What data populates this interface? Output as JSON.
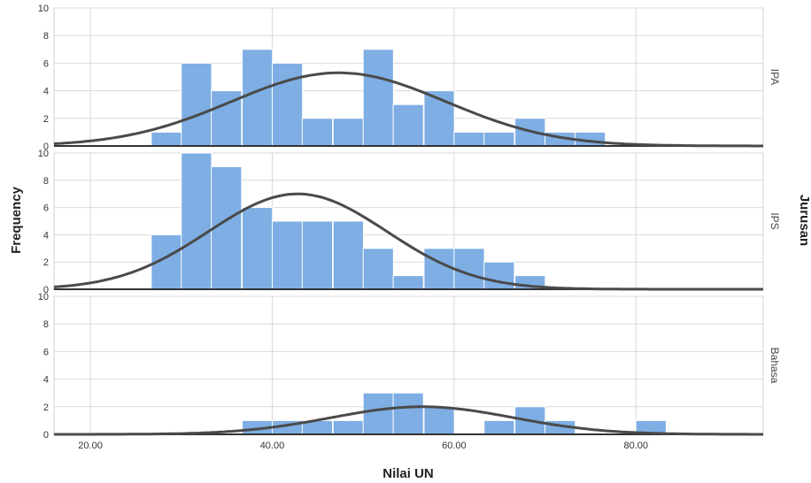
{
  "chart_data": {
    "type": "histogram",
    "title": "",
    "xlabel": "Nilai UN",
    "ylabel": "Frequency",
    "facet_title": "Jurusan",
    "xlim": [
      16,
      94
    ],
    "ylim": [
      0,
      10
    ],
    "x_ticks": [
      "20.00",
      "40.00",
      "60.00",
      "80.00"
    ],
    "x_tick_values": [
      20,
      40,
      60,
      80
    ],
    "y_ticks": [
      "0",
      "2",
      "4",
      "6",
      "8",
      "10"
    ],
    "y_tick_values": [
      0,
      2,
      4,
      6,
      8,
      10
    ],
    "bin_width": 3.33,
    "bar_color": "#7eaee3",
    "curve_color": "#4a4a4a",
    "normal_curve": true,
    "grid": true,
    "panels": [
      {
        "name": "IPA",
        "bins": [
          {
            "x": 26.7,
            "count": 1
          },
          {
            "x": 30.0,
            "count": 6
          },
          {
            "x": 33.3,
            "count": 4
          },
          {
            "x": 36.7,
            "count": 7
          },
          {
            "x": 40.0,
            "count": 6
          },
          {
            "x": 43.3,
            "count": 2
          },
          {
            "x": 46.7,
            "count": 2
          },
          {
            "x": 50.0,
            "count": 7
          },
          {
            "x": 53.3,
            "count": 3
          },
          {
            "x": 56.7,
            "count": 4
          },
          {
            "x": 60.0,
            "count": 1
          },
          {
            "x": 63.3,
            "count": 1
          },
          {
            "x": 66.7,
            "count": 2
          },
          {
            "x": 70.0,
            "count": 1
          },
          {
            "x": 73.3,
            "count": 1
          }
        ],
        "curve": {
          "mean": 47.3,
          "sd": 11.8,
          "peak": 5.3
        }
      },
      {
        "name": "IPS",
        "bins": [
          {
            "x": 26.7,
            "count": 4
          },
          {
            "x": 30.0,
            "count": 10
          },
          {
            "x": 33.3,
            "count": 9
          },
          {
            "x": 36.7,
            "count": 6
          },
          {
            "x": 40.0,
            "count": 5
          },
          {
            "x": 43.3,
            "count": 5
          },
          {
            "x": 46.7,
            "count": 5
          },
          {
            "x": 50.0,
            "count": 3
          },
          {
            "x": 53.3,
            "count": 1
          },
          {
            "x": 56.7,
            "count": 3
          },
          {
            "x": 60.0,
            "count": 3
          },
          {
            "x": 63.3,
            "count": 2
          },
          {
            "x": 66.7,
            "count": 1
          }
        ],
        "curve": {
          "mean": 42.8,
          "sd": 9.8,
          "peak": 7.0
        }
      },
      {
        "name": "Bahasa",
        "bins": [
          {
            "x": 36.7,
            "count": 1
          },
          {
            "x": 40.0,
            "count": 1
          },
          {
            "x": 43.3,
            "count": 1
          },
          {
            "x": 46.7,
            "count": 1
          },
          {
            "x": 50.0,
            "count": 3
          },
          {
            "x": 53.3,
            "count": 3
          },
          {
            "x": 56.7,
            "count": 2
          },
          {
            "x": 60.0,
            "count": 0
          },
          {
            "x": 63.3,
            "count": 1
          },
          {
            "x": 66.7,
            "count": 2
          },
          {
            "x": 70.0,
            "count": 1
          },
          {
            "x": 80.0,
            "count": 1
          }
        ],
        "curve": {
          "mean": 56.5,
          "sd": 10.0,
          "peak": 2.0
        }
      }
    ]
  }
}
